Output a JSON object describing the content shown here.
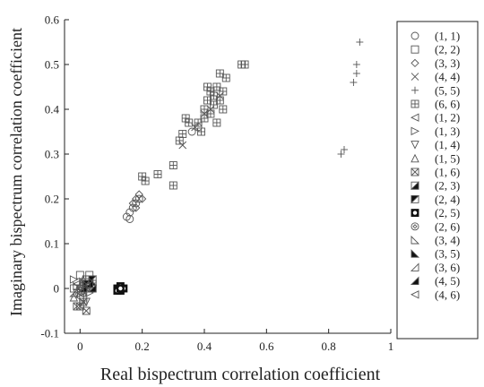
{
  "chart_data": {
    "type": "scatter",
    "title": "",
    "xlabel": "Real bispectrum correlation coefficient",
    "ylabel": "Imaginary bispectrum correlation coefficient",
    "xlim": [
      -0.05,
      1.0
    ],
    "ylim": [
      -0.1,
      0.6
    ],
    "x_ticks": [
      0,
      0.2,
      0.4,
      0.6,
      0.8,
      1
    ],
    "x_tick_labels": [
      "0",
      "0.2",
      "0.4",
      "0.6",
      "0.8",
      "1"
    ],
    "y_ticks": [
      -0.1,
      0,
      0.1,
      0.2,
      0.3,
      0.4,
      0.5,
      0.6
    ],
    "y_tick_labels": [
      "-0.1",
      "0",
      "0.1",
      "0.2",
      "0.3",
      "0.4",
      "0.5",
      "0.6"
    ],
    "grid": false,
    "legend_position": "right",
    "series": [
      {
        "name": "(1, 1)",
        "marker": "circle",
        "points": [
          [
            0.15,
            0.16
          ],
          [
            0.16,
            0.17
          ],
          [
            0.17,
            0.18
          ],
          [
            0.18,
            0.19
          ],
          [
            0.19,
            0.2
          ],
          [
            0.36,
            0.35
          ],
          [
            0.38,
            0.36
          ],
          [
            0.16,
            0.155
          ]
        ]
      },
      {
        "name": "(2, 2)",
        "marker": "square",
        "points": [
          [
            0.0,
            0.03
          ],
          [
            0.02,
            0.02
          ],
          [
            0.04,
            0.01
          ],
          [
            -0.02,
            0.0
          ],
          [
            0.01,
            -0.02
          ],
          [
            0.03,
            0.03
          ]
        ]
      },
      {
        "name": "(3, 3)",
        "marker": "diamond",
        "points": [
          [
            0.17,
            0.19
          ],
          [
            0.18,
            0.2
          ],
          [
            0.19,
            0.21
          ],
          [
            0.2,
            0.2
          ],
          [
            0.18,
            0.18
          ]
        ]
      },
      {
        "name": "(4, 4)",
        "marker": "x",
        "points": [
          [
            0.33,
            0.32
          ],
          [
            0.37,
            0.36
          ],
          [
            0.4,
            0.39
          ],
          [
            0.42,
            0.4
          ],
          [
            0.45,
            0.43
          ]
        ]
      },
      {
        "name": "(5, 5)",
        "marker": "plus",
        "points": [
          [
            0.84,
            0.3
          ],
          [
            0.85,
            0.31
          ],
          [
            0.88,
            0.46
          ],
          [
            0.89,
            0.48
          ],
          [
            0.9,
            0.55
          ],
          [
            0.89,
            0.5
          ]
        ]
      },
      {
        "name": "(6, 6)",
        "marker": "square-grid",
        "points": [
          [
            0.2,
            0.25
          ],
          [
            0.21,
            0.24
          ],
          [
            0.25,
            0.255
          ],
          [
            0.3,
            0.23
          ],
          [
            0.3,
            0.275
          ],
          [
            0.32,
            0.33
          ],
          [
            0.33,
            0.345
          ],
          [
            0.34,
            0.38
          ],
          [
            0.35,
            0.37
          ],
          [
            0.38,
            0.37
          ],
          [
            0.4,
            0.38
          ],
          [
            0.4,
            0.4
          ],
          [
            0.41,
            0.42
          ],
          [
            0.41,
            0.45
          ],
          [
            0.42,
            0.44
          ],
          [
            0.43,
            0.41
          ],
          [
            0.43,
            0.43
          ],
          [
            0.44,
            0.45
          ],
          [
            0.45,
            0.42
          ],
          [
            0.45,
            0.48
          ],
          [
            0.46,
            0.44
          ],
          [
            0.47,
            0.47
          ],
          [
            0.52,
            0.5
          ],
          [
            0.53,
            0.5
          ],
          [
            0.44,
            0.37
          ],
          [
            0.46,
            0.4
          ],
          [
            0.39,
            0.35
          ],
          [
            0.42,
            0.39
          ]
        ]
      },
      {
        "name": "(1, 2)",
        "marker": "tri-left",
        "points": [
          [
            0.0,
            -0.02
          ],
          [
            0.02,
            0.0
          ],
          [
            -0.01,
            0.01
          ]
        ]
      },
      {
        "name": "(1, 3)",
        "marker": "tri-right",
        "points": [
          [
            0.01,
            0.01
          ],
          [
            0.03,
            -0.01
          ],
          [
            -0.02,
            0.02
          ]
        ]
      },
      {
        "name": "(1, 4)",
        "marker": "tri-down",
        "points": [
          [
            0.0,
            0.0
          ],
          [
            0.02,
            -0.03
          ],
          [
            -0.01,
            -0.01
          ]
        ]
      },
      {
        "name": "(1, 5)",
        "marker": "tri-up",
        "points": [
          [
            0.01,
            0.02
          ],
          [
            -0.02,
            -0.02
          ],
          [
            0.03,
            0.0
          ]
        ]
      },
      {
        "name": "(1, 6)",
        "marker": "square-x",
        "points": [
          [
            0.0,
            -0.04
          ],
          [
            0.02,
            -0.05
          ],
          [
            0.01,
            -0.03
          ],
          [
            -0.01,
            -0.04
          ]
        ]
      },
      {
        "name": "(2, 3)",
        "marker": "half-square-a",
        "points": [
          [
            0.03,
            0.02
          ],
          [
            0.04,
            0.0
          ]
        ]
      },
      {
        "name": "(2, 4)",
        "marker": "half-square-b",
        "points": [
          [
            0.02,
            0.01
          ],
          [
            0.04,
            0.02
          ]
        ]
      },
      {
        "name": "(2, 5)",
        "marker": "square-ring",
        "points": [
          [
            0.12,
            0.0
          ],
          [
            0.13,
            0.005
          ],
          [
            0.13,
            -0.005
          ],
          [
            0.12,
            -0.005
          ],
          [
            0.14,
            0.0
          ],
          [
            0.13,
            0.0
          ]
        ]
      },
      {
        "name": "(2, 6)",
        "marker": "circle-dot",
        "points": [
          [
            0.0,
            0.0
          ],
          [
            0.01,
            -0.01
          ]
        ]
      },
      {
        "name": "(3, 4)",
        "marker": "right-tri",
        "points": [
          [
            0.01,
            0.015
          ],
          [
            -0.01,
            0.005
          ]
        ]
      },
      {
        "name": "(3, 5)",
        "marker": "filled-tri-a",
        "points": [
          [
            0.02,
            0.01
          ],
          [
            0.04,
            0.015
          ]
        ]
      },
      {
        "name": "(3, 6)",
        "marker": "open-tri-b",
        "points": [
          [
            -0.02,
            -0.01
          ],
          [
            0.0,
            0.01
          ]
        ]
      },
      {
        "name": "(4, 5)",
        "marker": "filled-tri-b",
        "points": [
          [
            0.03,
            0.01
          ],
          [
            0.01,
            0.0
          ]
        ]
      },
      {
        "name": "(4, 6)",
        "marker": "tri-left-small",
        "points": [
          [
            0.0,
            -0.01
          ],
          [
            0.02,
            0.005
          ]
        ]
      }
    ]
  }
}
